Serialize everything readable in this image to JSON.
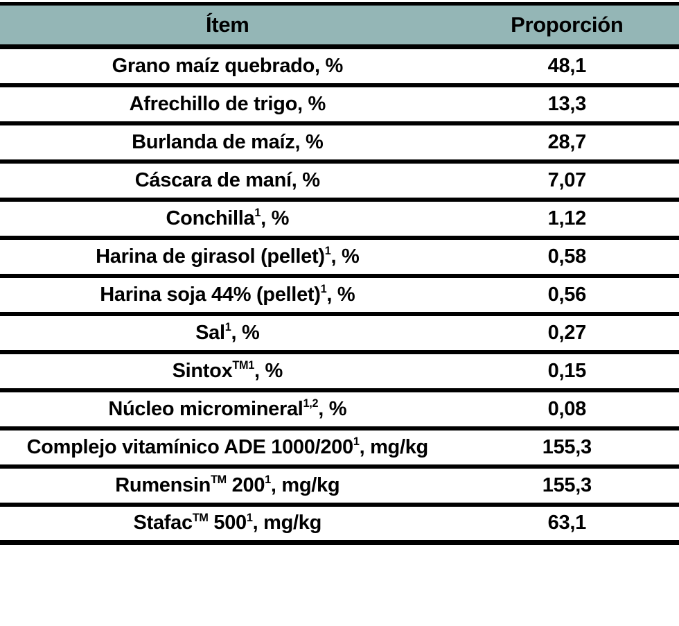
{
  "colors": {
    "header_bg": "#94b6b6",
    "border": "#000000",
    "text": "#000000",
    "page_bg": "#ffffff"
  },
  "table": {
    "headers": {
      "item_label": "Ítem",
      "value_label": "Proporción"
    },
    "rows": [
      {
        "item": [
          {
            "text": "Grano maíz quebrado, %"
          }
        ],
        "value": "48,1"
      },
      {
        "item": [
          {
            "text": "Afrechillo de trigo, %"
          }
        ],
        "value": "13,3"
      },
      {
        "item": [
          {
            "text": "Burlanda de maíz, %"
          }
        ],
        "value": "28,7"
      },
      {
        "item": [
          {
            "text": "Cáscara de maní, %"
          }
        ],
        "value": "7,07"
      },
      {
        "item": [
          {
            "text": "Conchilla"
          },
          {
            "sup": "1"
          },
          {
            "text": ", %"
          }
        ],
        "value": "1,12"
      },
      {
        "item": [
          {
            "text": "Harina de girasol (pellet)"
          },
          {
            "sup": "1"
          },
          {
            "text": ", %"
          }
        ],
        "value": "0,58"
      },
      {
        "item": [
          {
            "text": "Harina soja 44% (pellet)"
          },
          {
            "sup": "1"
          },
          {
            "text": ", %"
          }
        ],
        "value": "0,56"
      },
      {
        "item": [
          {
            "text": "Sal"
          },
          {
            "sup": "1"
          },
          {
            "text": ", %"
          }
        ],
        "value": "0,27"
      },
      {
        "item": [
          {
            "text": "Sintox"
          },
          {
            "sup": "TM1"
          },
          {
            "text": ", %"
          }
        ],
        "value": "0,15"
      },
      {
        "item": [
          {
            "text": "Núcleo micromineral"
          },
          {
            "sup": "1,2"
          },
          {
            "text": ", %"
          }
        ],
        "value": "0,08"
      },
      {
        "item": [
          {
            "text": "Complejo vitamínico ADE 1000/200"
          },
          {
            "sup": "1"
          },
          {
            "text": ", mg/kg"
          }
        ],
        "value": "155,3"
      },
      {
        "item": [
          {
            "text": "Rumensin"
          },
          {
            "sup": "TM"
          },
          {
            "text": " 200"
          },
          {
            "sup": "1"
          },
          {
            "text": ", mg/kg"
          }
        ],
        "value": "155,3"
      },
      {
        "item": [
          {
            "text": "Stafac"
          },
          {
            "sup": "TM"
          },
          {
            "text": " 500"
          },
          {
            "sup": "1"
          },
          {
            "text": ", mg/kg"
          }
        ],
        "value": "63,1"
      }
    ]
  }
}
